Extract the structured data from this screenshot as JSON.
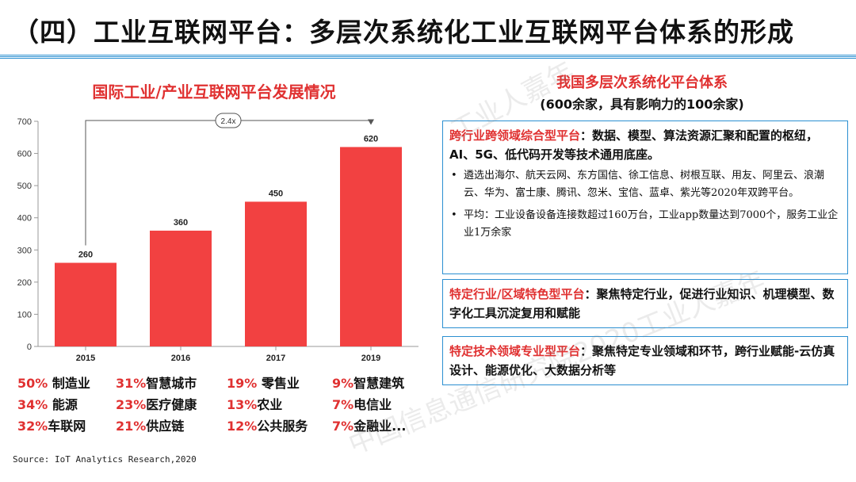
{
  "page_title": "（四）工业互联网平台：多层次系统化工业互联网平台体系的形成",
  "chart_data": {
    "type": "bar",
    "title": "国际工业/产业互联网平台发展情况",
    "categories": [
      "2015",
      "2016",
      "2017",
      "2019"
    ],
    "values": [
      260,
      360,
      450,
      620
    ],
    "data_labels": [
      "260",
      "360",
      "450",
      "620"
    ],
    "ylim": [
      0,
      700
    ],
    "yticks": [
      0,
      100,
      200,
      300,
      400,
      500,
      600,
      700
    ],
    "ytick_labels": [
      "0",
      "100",
      "200",
      "300",
      "400",
      "500",
      "600",
      "700"
    ],
    "grid": false,
    "bar_color": "#f24141",
    "annotation": "2.4x"
  },
  "stats": [
    {
      "pct": "50%",
      "label": " 制造业"
    },
    {
      "pct": "31%",
      "label": "智慧城市"
    },
    {
      "pct": "19%",
      "label": " 零售业"
    },
    {
      "pct": "9%",
      "label": "智慧建筑"
    },
    {
      "pct": "34%",
      "label": " 能源"
    },
    {
      "pct": "23%",
      "label": "医疗健康"
    },
    {
      "pct": "13%",
      "label": "农业"
    },
    {
      "pct": "7%",
      "label": "电信业"
    },
    {
      "pct": "32%",
      "label": "车联网"
    },
    {
      "pct": "21%",
      "label": "供应链"
    },
    {
      "pct": "12%",
      "label": "公共服务"
    },
    {
      "pct": "7%",
      "label": "金融业..."
    }
  ],
  "source": "Source: IoT Analytics Research,2020",
  "right_panel": {
    "title": "我国多层次系统化平台体系",
    "subtitle": "(600余家，具有影响力的100余家)",
    "box1": {
      "head_red": "跨行业跨领域综合型平台",
      "head_rest": "：数据、模型、算法资源汇聚和配置的枢纽，AI、5G、低代码开发等技术通用底座。",
      "bullets": [
        "遴选出海尔、航天云网、东方国信、徐工信息、树根互联、用友、阿里云、浪潮云、华为、富士康、腾讯、忽米、宝信、蓝卓、紫光等2020年双跨平台。",
        "平均：工业设备设备连接数超过160万台，工业app数量达到7000个，服务工业企业1万余家"
      ],
      "bullet_mark": "•"
    },
    "box2": {
      "head_red": "特定行业/区域特色型平台",
      "head_rest": "：聚焦特定行业，促进行业知识、机理模型、数字化工具沉淀复用和赋能"
    },
    "box3": {
      "head_red": "特定技术领域专业型平台",
      "head_rest": "：聚焦特定专业领域和环节，跨行业赋能-云仿真设计、能源优化、大数据分析等"
    }
  },
  "watermark": {
    "text_1": "工业人嘉年",
    "text_2": "中国信息通信研究院2020工业人嘉年"
  },
  "colors": {
    "accent_red": "#e03131",
    "border_blue": "#2b8fd1"
  }
}
